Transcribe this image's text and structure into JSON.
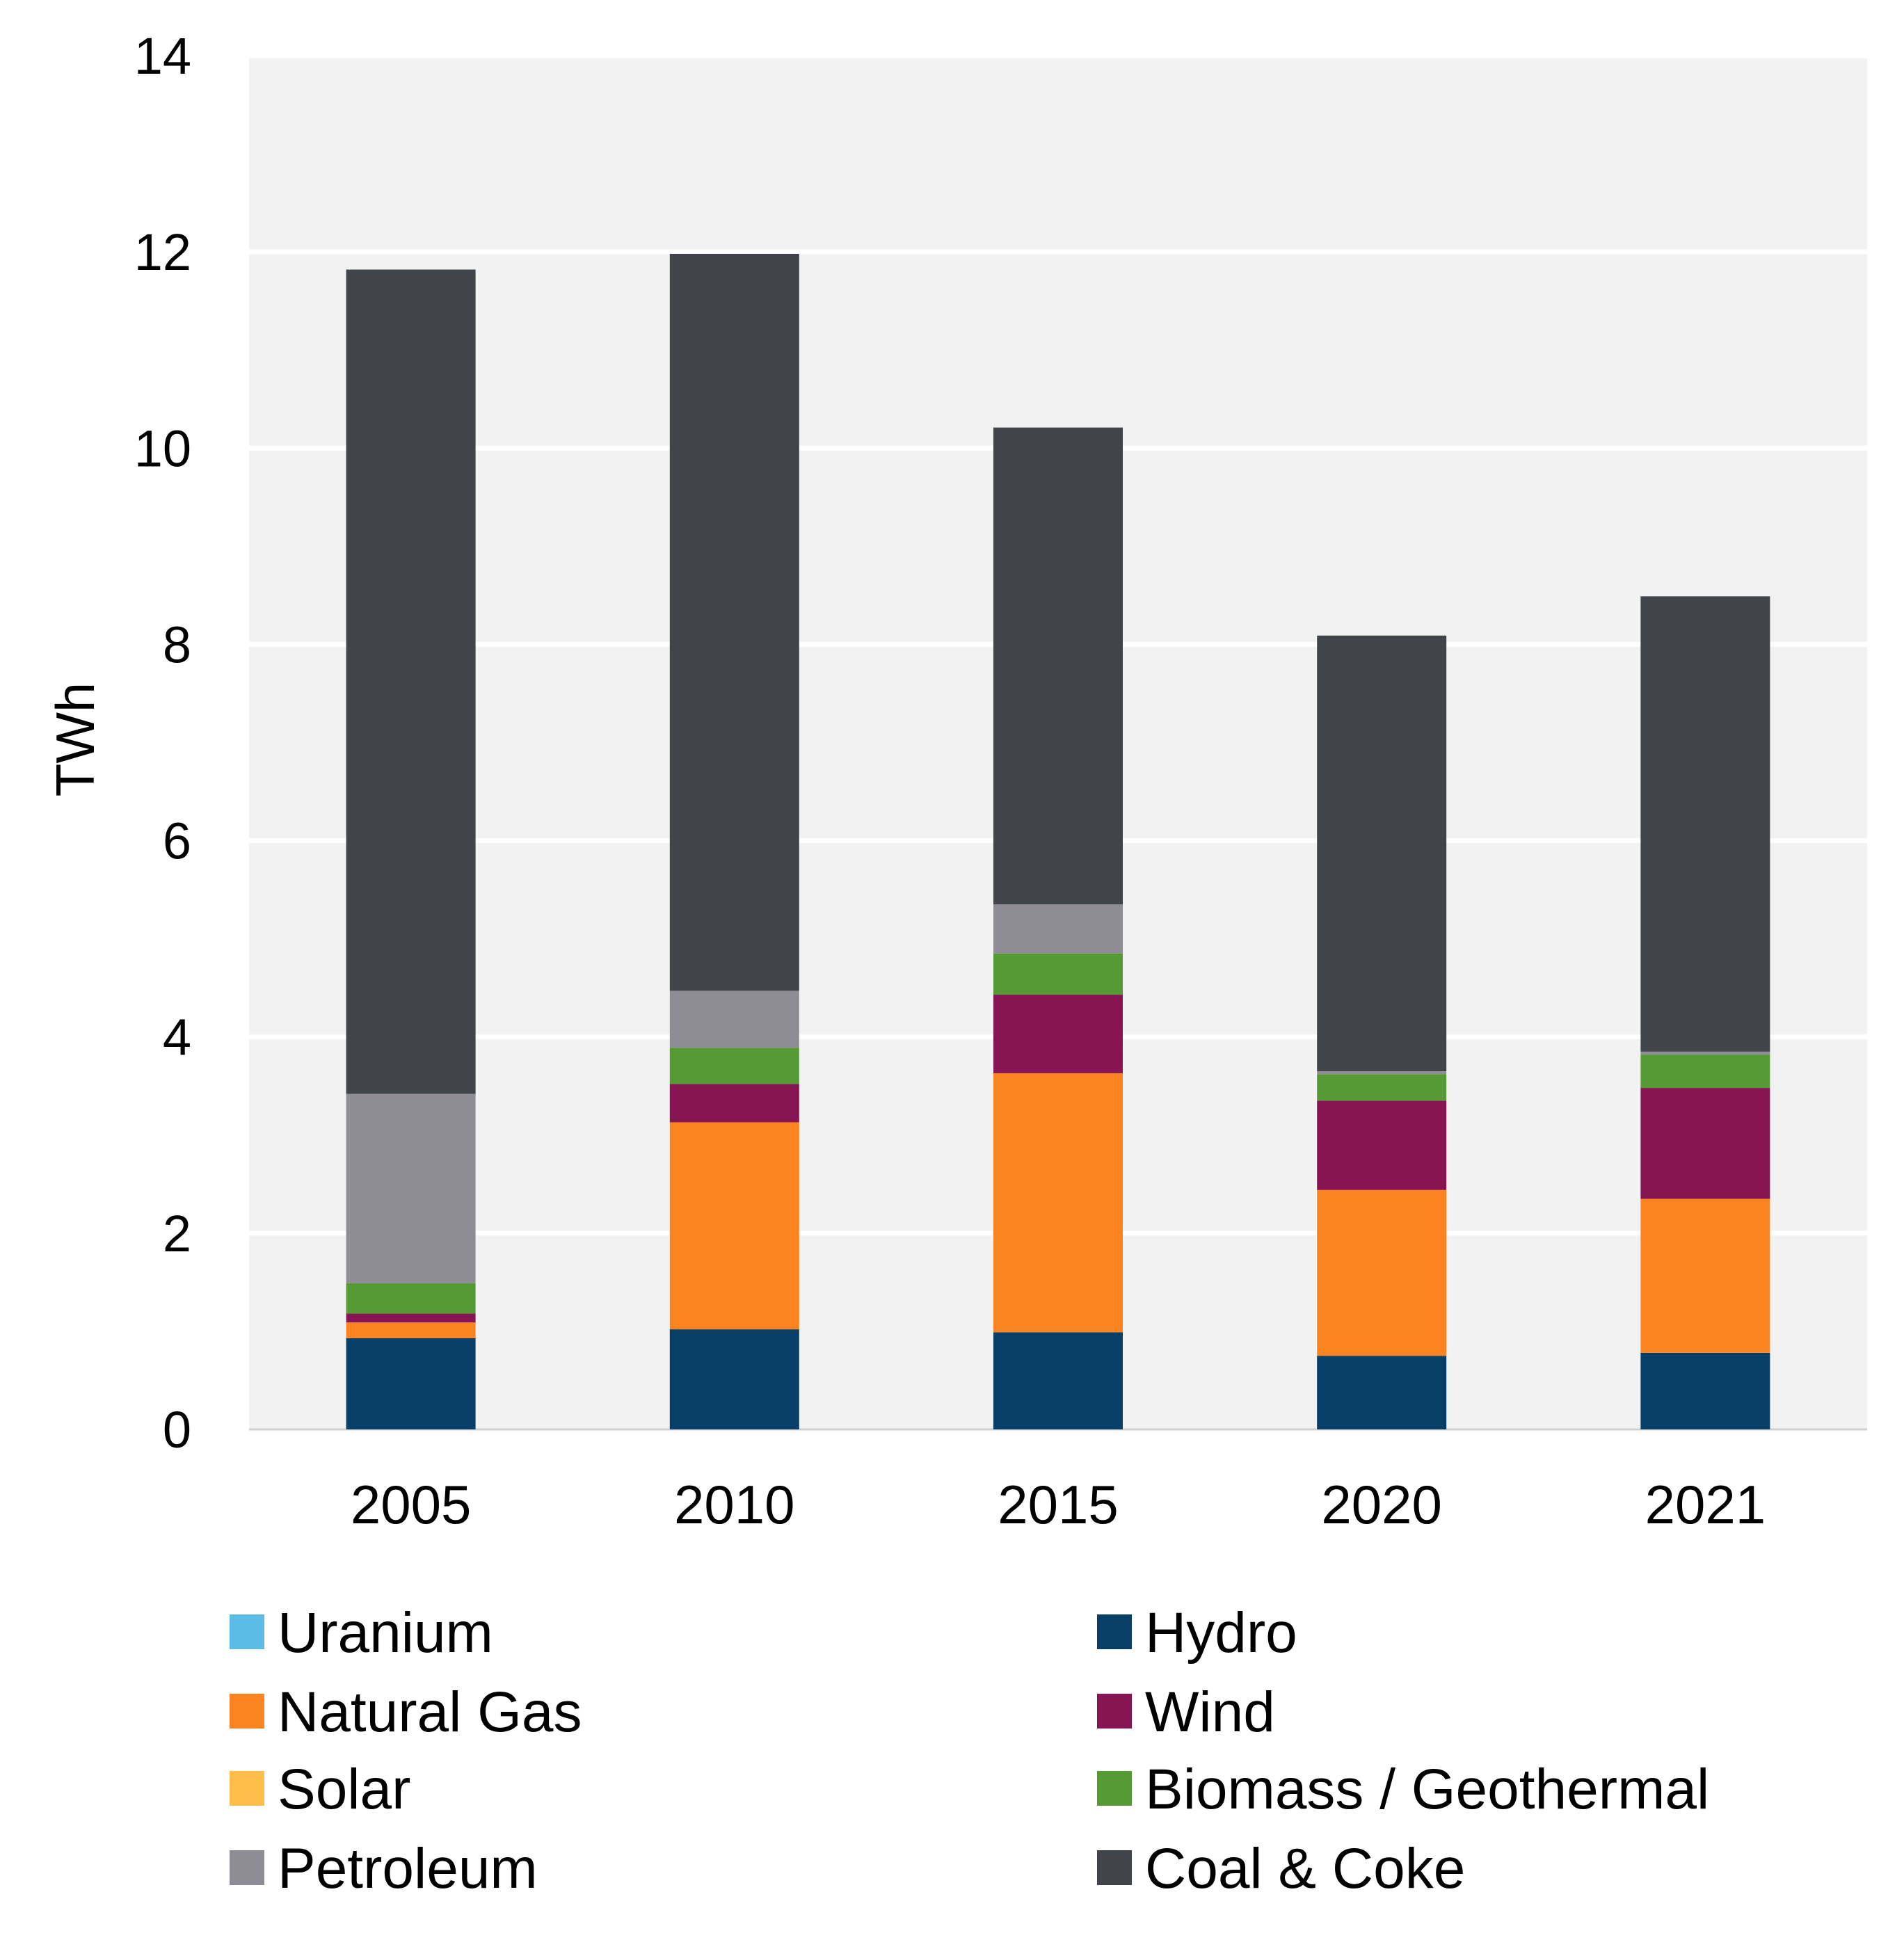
{
  "chart_data": {
    "type": "bar",
    "stacked": true,
    "title": "",
    "xlabel": "",
    "ylabel": "TWh",
    "ylim": [
      0,
      14
    ],
    "yticks": [
      "0",
      "2",
      "4",
      "6",
      "8",
      "10",
      "12",
      "14"
    ],
    "grid": true,
    "legend_position": "bottom",
    "categories": [
      "2005",
      "2010",
      "2015",
      "2020",
      "2021"
    ],
    "series": [
      {
        "name": "Uranium",
        "color": "#5bbde6",
        "values": [
          0,
          0,
          0,
          0,
          0
        ]
      },
      {
        "name": "Hydro",
        "color": "#083f69",
        "values": [
          0.93,
          1.02,
          0.99,
          0.75,
          0.78
        ]
      },
      {
        "name": "Natural Gas",
        "color": "#fc8420",
        "values": [
          0.16,
          2.11,
          2.64,
          1.69,
          1.57
        ]
      },
      {
        "name": "Wind",
        "color": "#871453",
        "values": [
          0.09,
          0.39,
          0.8,
          0.91,
          1.13
        ]
      },
      {
        "name": "Solar",
        "color": "#ffbd4a",
        "values": [
          0,
          0,
          0,
          0,
          0
        ]
      },
      {
        "name": "Biomass / Geothermal",
        "color": "#569a36",
        "values": [
          0.31,
          0.37,
          0.42,
          0.27,
          0.34
        ]
      },
      {
        "name": "Petroleum",
        "color": "#8e8d96",
        "values": [
          1.93,
          0.58,
          0.5,
          0.03,
          0.03
        ]
      },
      {
        "name": "Coal & Coke",
        "color": "#414449",
        "values": [
          8.4,
          7.51,
          4.86,
          4.44,
          4.64
        ]
      }
    ],
    "legend_order": [
      "Uranium",
      "Hydro",
      "Natural Gas",
      "Wind",
      "Solar",
      "Biomass / Geothermal",
      "Petroleum",
      "Coal & Coke"
    ]
  }
}
